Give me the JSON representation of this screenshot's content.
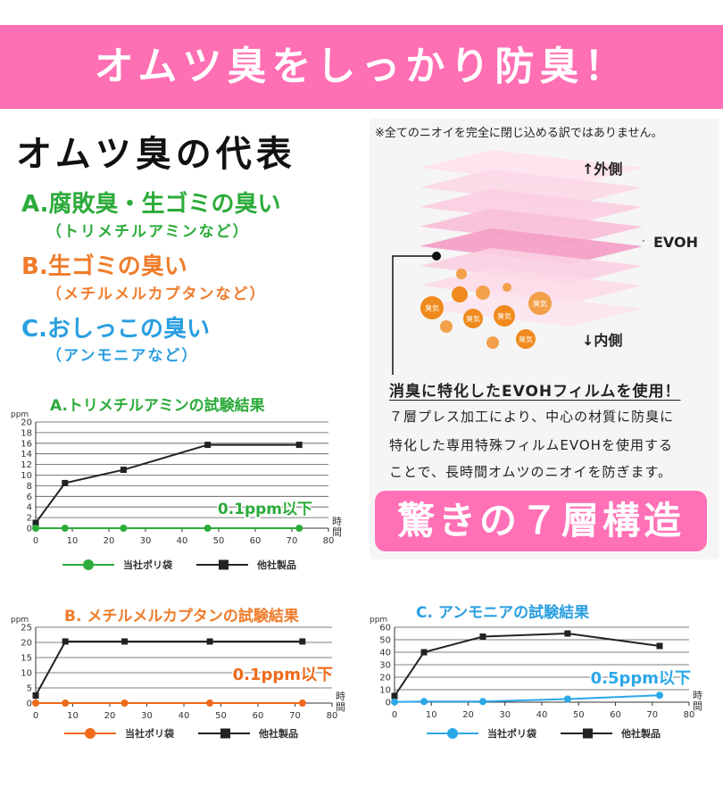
{
  "banner": {
    "title": "オムツ臭をしっかり防臭！"
  },
  "odor_section": {
    "title": "オムツ臭の代表",
    "causes": [
      {
        "name": "A.腐敗臭・生ゴミの臭い",
        "note": "（トリメチルアミンなど）",
        "color": "#2cab3a"
      },
      {
        "name": "B.生ゴミの臭い",
        "note": "（メチルメルカプタンなど）",
        "color": "#ef7c2b"
      },
      {
        "name": "C.おしっこの臭い",
        "note": "（アンモニアなど）",
        "color": "#2a9fe0"
      }
    ]
  },
  "structure_panel": {
    "disclaimer": "※全てのニオイを完全に閉じ込める訳ではありません。",
    "outer_label": "↑外側",
    "evoh_label": "EVOH",
    "inner_label": "↓内側",
    "bubble_text": "臭気",
    "feature_title": "消臭に特化したEVOHフィルムを使用！",
    "feature_lines": [
      "７層プレス加工により、中心の材質に防臭に",
      "特化した専用特殊フィルムEVOHを使用する",
      "ことで、長時間オムツのニオイを防ぎます。"
    ],
    "badge": "驚きの７層構造"
  },
  "chart_data": [
    {
      "type": "line",
      "title": "A.トリメチルアミンの試験結果",
      "ylabel": "ppm",
      "xlabel": "時間",
      "xlim": [
        0,
        80
      ],
      "ylim": [
        0,
        20
      ],
      "x_ticks": [
        0,
        10,
        20,
        30,
        40,
        50,
        60,
        70,
        80
      ],
      "y_ticks": [
        0,
        2,
        4,
        6,
        8,
        10,
        12,
        14,
        16,
        18,
        20
      ],
      "annotation": "0.1ppm以下",
      "series": [
        {
          "name": "当社ポリ袋",
          "color": "#2cab3a",
          "marker": "circle",
          "x": [
            0,
            8,
            24,
            47,
            72
          ],
          "y": [
            0,
            0,
            0,
            0,
            0
          ]
        },
        {
          "name": "他社製品",
          "color": "#222222",
          "marker": "square",
          "x": [
            0,
            8,
            24,
            47,
            72
          ],
          "y": [
            1,
            8.5,
            11,
            15.7,
            15.7
          ]
        }
      ]
    },
    {
      "type": "line",
      "title": "B. メチルメルカプタンの試験結果",
      "ylabel": "ppm",
      "xlabel": "時間",
      "xlim": [
        0,
        80
      ],
      "ylim": [
        0,
        25
      ],
      "x_ticks": [
        0,
        10,
        20,
        30,
        40,
        50,
        60,
        70,
        80
      ],
      "y_ticks": [
        0,
        5,
        10,
        15,
        20,
        25
      ],
      "annotation": "0.1ppm以下",
      "series": [
        {
          "name": "当社ポリ袋",
          "color": "#ef6a1b",
          "marker": "circle",
          "x": [
            0,
            8,
            24,
            47,
            72
          ],
          "y": [
            0,
            0,
            0,
            0,
            0
          ]
        },
        {
          "name": "他社製品",
          "color": "#222222",
          "marker": "square",
          "x": [
            0,
            8,
            24,
            47,
            72
          ],
          "y": [
            2.5,
            20.3,
            20.3,
            20.3,
            20.3
          ]
        }
      ]
    },
    {
      "type": "line",
      "title": "C. アンモニアの試験結果",
      "ylabel": "ppm",
      "xlabel": "時間",
      "xlim": [
        0,
        80
      ],
      "ylim": [
        0,
        60
      ],
      "x_ticks": [
        0,
        10,
        20,
        30,
        40,
        50,
        60,
        70,
        80
      ],
      "y_ticks": [
        0,
        10,
        20,
        30,
        40,
        50,
        60
      ],
      "annotation": "0.5ppm以下",
      "series": [
        {
          "name": "当社ポリ袋",
          "color": "#2aa8e8",
          "marker": "circle",
          "x": [
            0,
            8,
            24,
            47,
            72
          ],
          "y": [
            0.2,
            0.5,
            0.5,
            2.5,
            5.5
          ]
        },
        {
          "name": "他社製品",
          "color": "#222222",
          "marker": "square",
          "x": [
            0,
            8,
            24,
            47,
            72
          ],
          "y": [
            5,
            40,
            52.5,
            55,
            45
          ]
        }
      ]
    }
  ]
}
